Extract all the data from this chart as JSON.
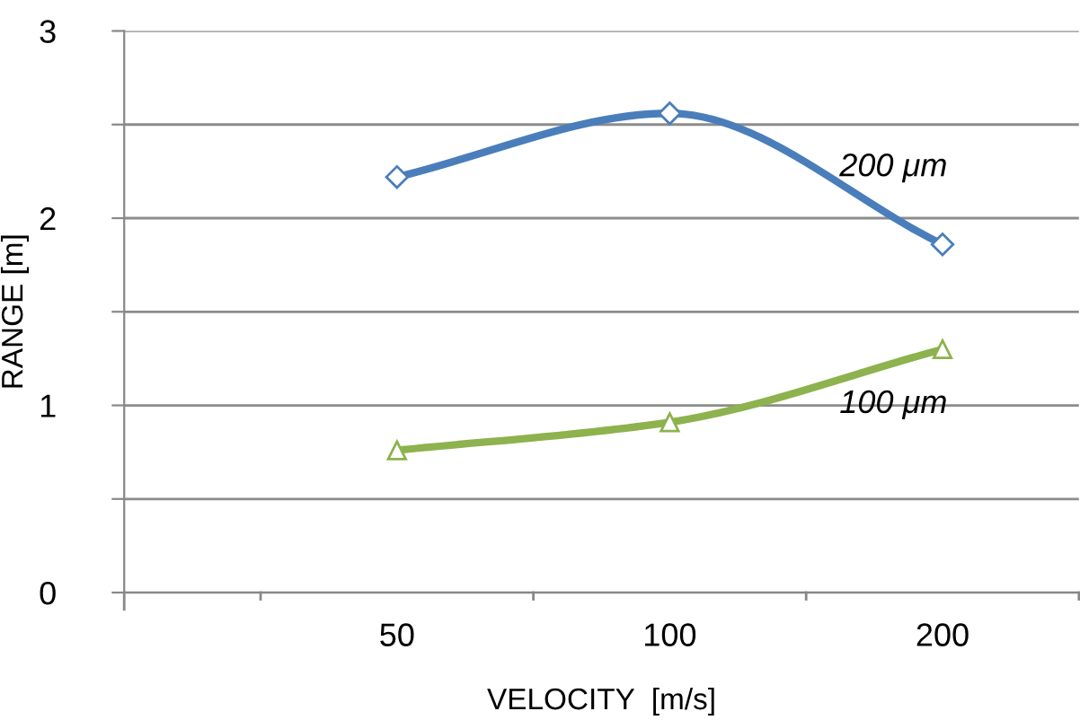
{
  "chart_data": {
    "type": "line",
    "xlabel": "VELOCITY  [m/s]",
    "ylabel": "RANGE [m]",
    "categories": [
      "50",
      "100",
      "200"
    ],
    "series": [
      {
        "name": "200 μm",
        "color": "#4a7ebb",
        "marker": "diamond",
        "values": [
          2.22,
          2.56,
          1.86
        ]
      },
      {
        "name": "100 μm",
        "color": "#8db24e",
        "marker": "triangle",
        "values": [
          0.76,
          0.91,
          1.3
        ]
      }
    ],
    "ylim": [
      0,
      3
    ],
    "yticks": [
      0,
      {
        "value": 0.5,
        "label": null
      },
      1,
      {
        "value": 1.5,
        "label": null
      },
      2,
      {
        "value": 2.5,
        "label": null
      },
      3
    ],
    "grid": "y",
    "legend": false,
    "line_style": "solid"
  }
}
